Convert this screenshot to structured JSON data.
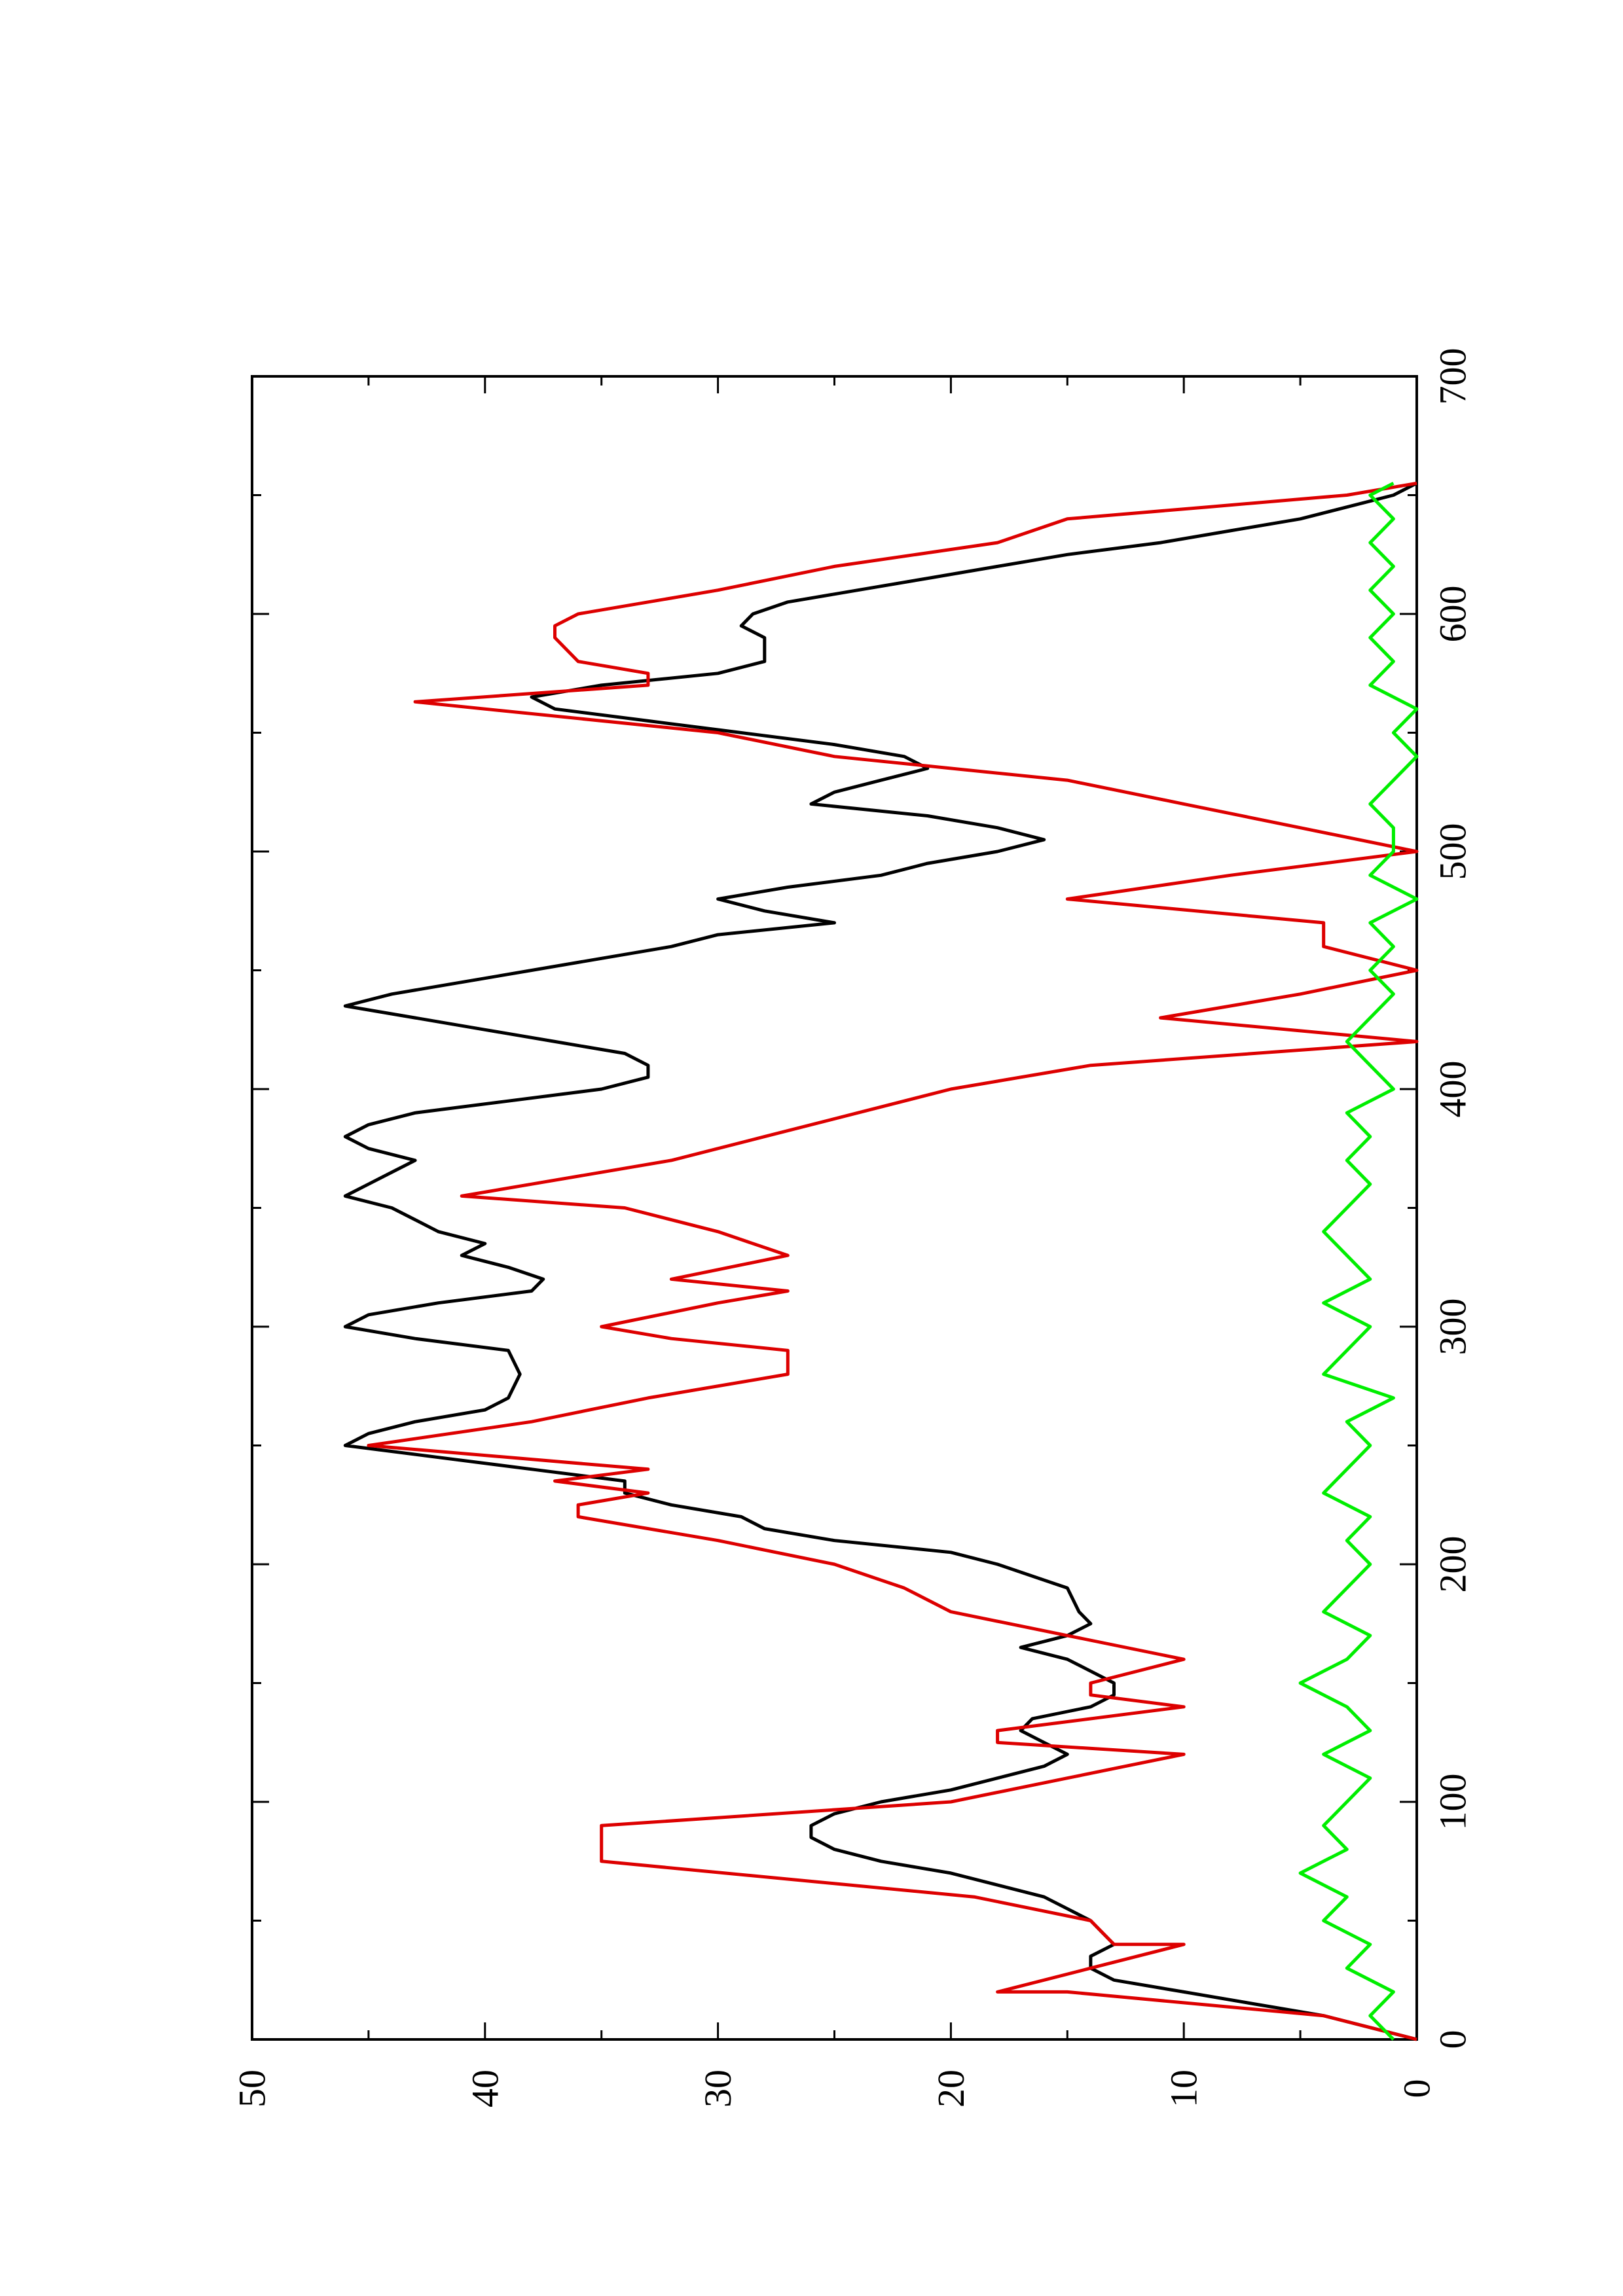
{
  "chart_data": {
    "type": "line",
    "orientation": "rotated-90-ccw",
    "title": "",
    "xlabel": "",
    "ylabel": "",
    "xlim": [
      0,
      700
    ],
    "ylim": [
      0,
      50
    ],
    "x_ticks": [
      0,
      100,
      200,
      300,
      400,
      500,
      600,
      700
    ],
    "y_ticks": [
      0,
      10,
      20,
      30,
      40,
      50
    ],
    "x_ticks_labels": [
      "0",
      "100",
      "200",
      "300",
      "400",
      "500",
      "600",
      "700"
    ],
    "y_ticks_labels": [
      "0",
      "10",
      "20",
      "30",
      "40",
      "50"
    ],
    "grid": false,
    "legend": "none",
    "series": [
      {
        "color": "#000000",
        "points": [
          [
            0,
            0
          ],
          [
            5,
            2
          ],
          [
            10,
            4
          ],
          [
            15,
            7
          ],
          [
            20,
            10
          ],
          [
            25,
            13
          ],
          [
            30,
            14
          ],
          [
            35,
            14
          ],
          [
            40,
            13
          ],
          [
            45,
            13.5
          ],
          [
            50,
            14
          ],
          [
            55,
            15
          ],
          [
            60,
            16
          ],
          [
            65,
            18
          ],
          [
            70,
            20
          ],
          [
            75,
            23
          ],
          [
            80,
            25
          ],
          [
            85,
            26
          ],
          [
            90,
            26
          ],
          [
            95,
            25
          ],
          [
            100,
            23
          ],
          [
            105,
            20
          ],
          [
            110,
            18
          ],
          [
            115,
            16
          ],
          [
            120,
            15
          ],
          [
            125,
            16
          ],
          [
            130,
            17
          ],
          [
            135,
            16.5
          ],
          [
            140,
            14
          ],
          [
            145,
            13
          ],
          [
            150,
            13
          ],
          [
            155,
            14
          ],
          [
            160,
            15
          ],
          [
            165,
            17
          ],
          [
            170,
            15
          ],
          [
            175,
            14
          ],
          [
            180,
            14.5
          ],
          [
            190,
            15
          ],
          [
            200,
            18
          ],
          [
            205,
            20
          ],
          [
            210,
            25
          ],
          [
            215,
            28
          ],
          [
            220,
            29
          ],
          [
            225,
            32
          ],
          [
            230,
            34
          ],
          [
            235,
            34
          ],
          [
            240,
            38
          ],
          [
            245,
            42
          ],
          [
            250,
            46
          ],
          [
            255,
            45
          ],
          [
            260,
            43
          ],
          [
            265,
            40
          ],
          [
            270,
            39
          ],
          [
            280,
            38.5
          ],
          [
            290,
            39
          ],
          [
            295,
            43
          ],
          [
            300,
            46
          ],
          [
            305,
            45
          ],
          [
            310,
            42
          ],
          [
            315,
            38
          ],
          [
            320,
            37.5
          ],
          [
            325,
            39
          ],
          [
            330,
            41
          ],
          [
            335,
            40
          ],
          [
            340,
            42
          ],
          [
            345,
            43
          ],
          [
            350,
            44
          ],
          [
            355,
            46
          ],
          [
            360,
            45
          ],
          [
            365,
            44
          ],
          [
            370,
            43
          ],
          [
            375,
            45
          ],
          [
            380,
            46
          ],
          [
            385,
            45
          ],
          [
            390,
            43
          ],
          [
            395,
            39
          ],
          [
            400,
            35
          ],
          [
            405,
            33
          ],
          [
            410,
            33
          ],
          [
            415,
            34
          ],
          [
            420,
            37
          ],
          [
            425,
            40
          ],
          [
            430,
            43
          ],
          [
            435,
            46
          ],
          [
            440,
            44
          ],
          [
            445,
            41
          ],
          [
            450,
            38
          ],
          [
            455,
            35
          ],
          [
            460,
            32
          ],
          [
            465,
            30
          ],
          [
            470,
            25
          ],
          [
            475,
            28
          ],
          [
            480,
            30
          ],
          [
            485,
            27
          ],
          [
            490,
            23
          ],
          [
            495,
            21
          ],
          [
            500,
            18
          ],
          [
            505,
            16
          ],
          [
            510,
            18
          ],
          [
            515,
            21
          ],
          [
            520,
            26
          ],
          [
            525,
            25
          ],
          [
            530,
            23
          ],
          [
            535,
            21
          ],
          [
            540,
            22
          ],
          [
            545,
            25
          ],
          [
            550,
            29
          ],
          [
            555,
            33
          ],
          [
            560,
            37
          ],
          [
            565,
            38
          ],
          [
            570,
            35
          ],
          [
            575,
            30
          ],
          [
            580,
            28
          ],
          [
            585,
            28
          ],
          [
            590,
            28
          ],
          [
            595,
            29
          ],
          [
            600,
            28.5
          ],
          [
            605,
            27
          ],
          [
            610,
            24
          ],
          [
            615,
            21
          ],
          [
            620,
            18
          ],
          [
            625,
            15
          ],
          [
            630,
            11
          ],
          [
            635,
            8
          ],
          [
            640,
            5
          ],
          [
            645,
            3
          ],
          [
            650,
            1
          ],
          [
            655,
            0
          ]
        ]
      },
      {
        "color": "#dd0000",
        "points": [
          [
            0,
            0
          ],
          [
            10,
            4
          ],
          [
            20,
            15
          ],
          [
            20,
            18
          ],
          [
            30,
            14
          ],
          [
            40,
            10
          ],
          [
            40,
            13
          ],
          [
            50,
            14
          ],
          [
            60,
            19
          ],
          [
            75,
            35
          ],
          [
            90,
            35
          ],
          [
            100,
            20
          ],
          [
            110,
            15
          ],
          [
            120,
            10
          ],
          [
            125,
            18
          ],
          [
            130,
            18
          ],
          [
            140,
            10
          ],
          [
            145,
            14
          ],
          [
            150,
            14
          ],
          [
            160,
            10
          ],
          [
            170,
            15
          ],
          [
            180,
            20
          ],
          [
            190,
            22
          ],
          [
            200,
            25
          ],
          [
            210,
            30
          ],
          [
            220,
            36
          ],
          [
            225,
            36
          ],
          [
            230,
            33
          ],
          [
            235,
            37
          ],
          [
            240,
            33
          ],
          [
            250,
            45
          ],
          [
            260,
            38
          ],
          [
            270,
            33
          ],
          [
            280,
            27
          ],
          [
            290,
            27
          ],
          [
            295,
            32
          ],
          [
            300,
            35
          ],
          [
            310,
            30
          ],
          [
            315,
            27
          ],
          [
            320,
            32
          ],
          [
            330,
            27
          ],
          [
            340,
            30
          ],
          [
            350,
            34
          ],
          [
            355,
            41
          ],
          [
            360,
            38
          ],
          [
            370,
            32
          ],
          [
            380,
            28
          ],
          [
            390,
            24
          ],
          [
            400,
            20
          ],
          [
            410,
            14
          ],
          [
            420,
            0
          ],
          [
            430,
            11
          ],
          [
            440,
            5
          ],
          [
            450,
            0
          ],
          [
            460,
            4
          ],
          [
            470,
            4
          ],
          [
            480,
            15
          ],
          [
            490,
            8
          ],
          [
            500,
            0
          ],
          [
            510,
            5
          ],
          [
            520,
            10
          ],
          [
            530,
            15
          ],
          [
            540,
            25
          ],
          [
            550,
            30
          ],
          [
            563,
            43
          ],
          [
            570,
            33
          ],
          [
            575,
            33
          ],
          [
            580,
            36
          ],
          [
            590,
            37
          ],
          [
            595,
            37
          ],
          [
            600,
            36
          ],
          [
            610,
            30
          ],
          [
            620,
            25
          ],
          [
            630,
            18
          ],
          [
            640,
            15
          ],
          [
            645,
            9
          ],
          [
            650,
            3
          ],
          [
            655,
            0
          ]
        ]
      },
      {
        "color": "#00ee00",
        "points": [
          [
            0,
            1
          ],
          [
            10,
            2
          ],
          [
            20,
            1
          ],
          [
            30,
            3
          ],
          [
            40,
            2
          ],
          [
            50,
            4
          ],
          [
            60,
            3
          ],
          [
            70,
            5
          ],
          [
            80,
            3
          ],
          [
            90,
            4
          ],
          [
            100,
            3
          ],
          [
            110,
            2
          ],
          [
            120,
            4
          ],
          [
            130,
            2
          ],
          [
            140,
            3
          ],
          [
            150,
            5
          ],
          [
            160,
            3
          ],
          [
            170,
            2
          ],
          [
            180,
            4
          ],
          [
            190,
            3
          ],
          [
            200,
            2
          ],
          [
            210,
            3
          ],
          [
            220,
            2
          ],
          [
            230,
            4
          ],
          [
            240,
            3
          ],
          [
            250,
            2
          ],
          [
            260,
            3
          ],
          [
            270,
            1
          ],
          [
            280,
            4
          ],
          [
            290,
            3
          ],
          [
            300,
            2
          ],
          [
            310,
            4
          ],
          [
            320,
            2
          ],
          [
            330,
            3
          ],
          [
            340,
            4
          ],
          [
            350,
            3
          ],
          [
            360,
            2
          ],
          [
            370,
            3
          ],
          [
            380,
            2
          ],
          [
            390,
            3
          ],
          [
            400,
            1
          ],
          [
            410,
            2
          ],
          [
            420,
            3
          ],
          [
            430,
            2
          ],
          [
            440,
            1
          ],
          [
            450,
            2
          ],
          [
            460,
            1
          ],
          [
            470,
            2
          ],
          [
            480,
            0
          ],
          [
            490,
            2
          ],
          [
            500,
            1
          ],
          [
            510,
            1
          ],
          [
            520,
            2
          ],
          [
            530,
            1
          ],
          [
            540,
            0
          ],
          [
            550,
            1
          ],
          [
            560,
            0
          ],
          [
            570,
            2
          ],
          [
            580,
            1
          ],
          [
            590,
            2
          ],
          [
            600,
            1
          ],
          [
            610,
            2
          ],
          [
            620,
            1
          ],
          [
            630,
            2
          ],
          [
            640,
            1
          ],
          [
            650,
            2
          ],
          [
            655,
            1
          ]
        ]
      }
    ]
  }
}
